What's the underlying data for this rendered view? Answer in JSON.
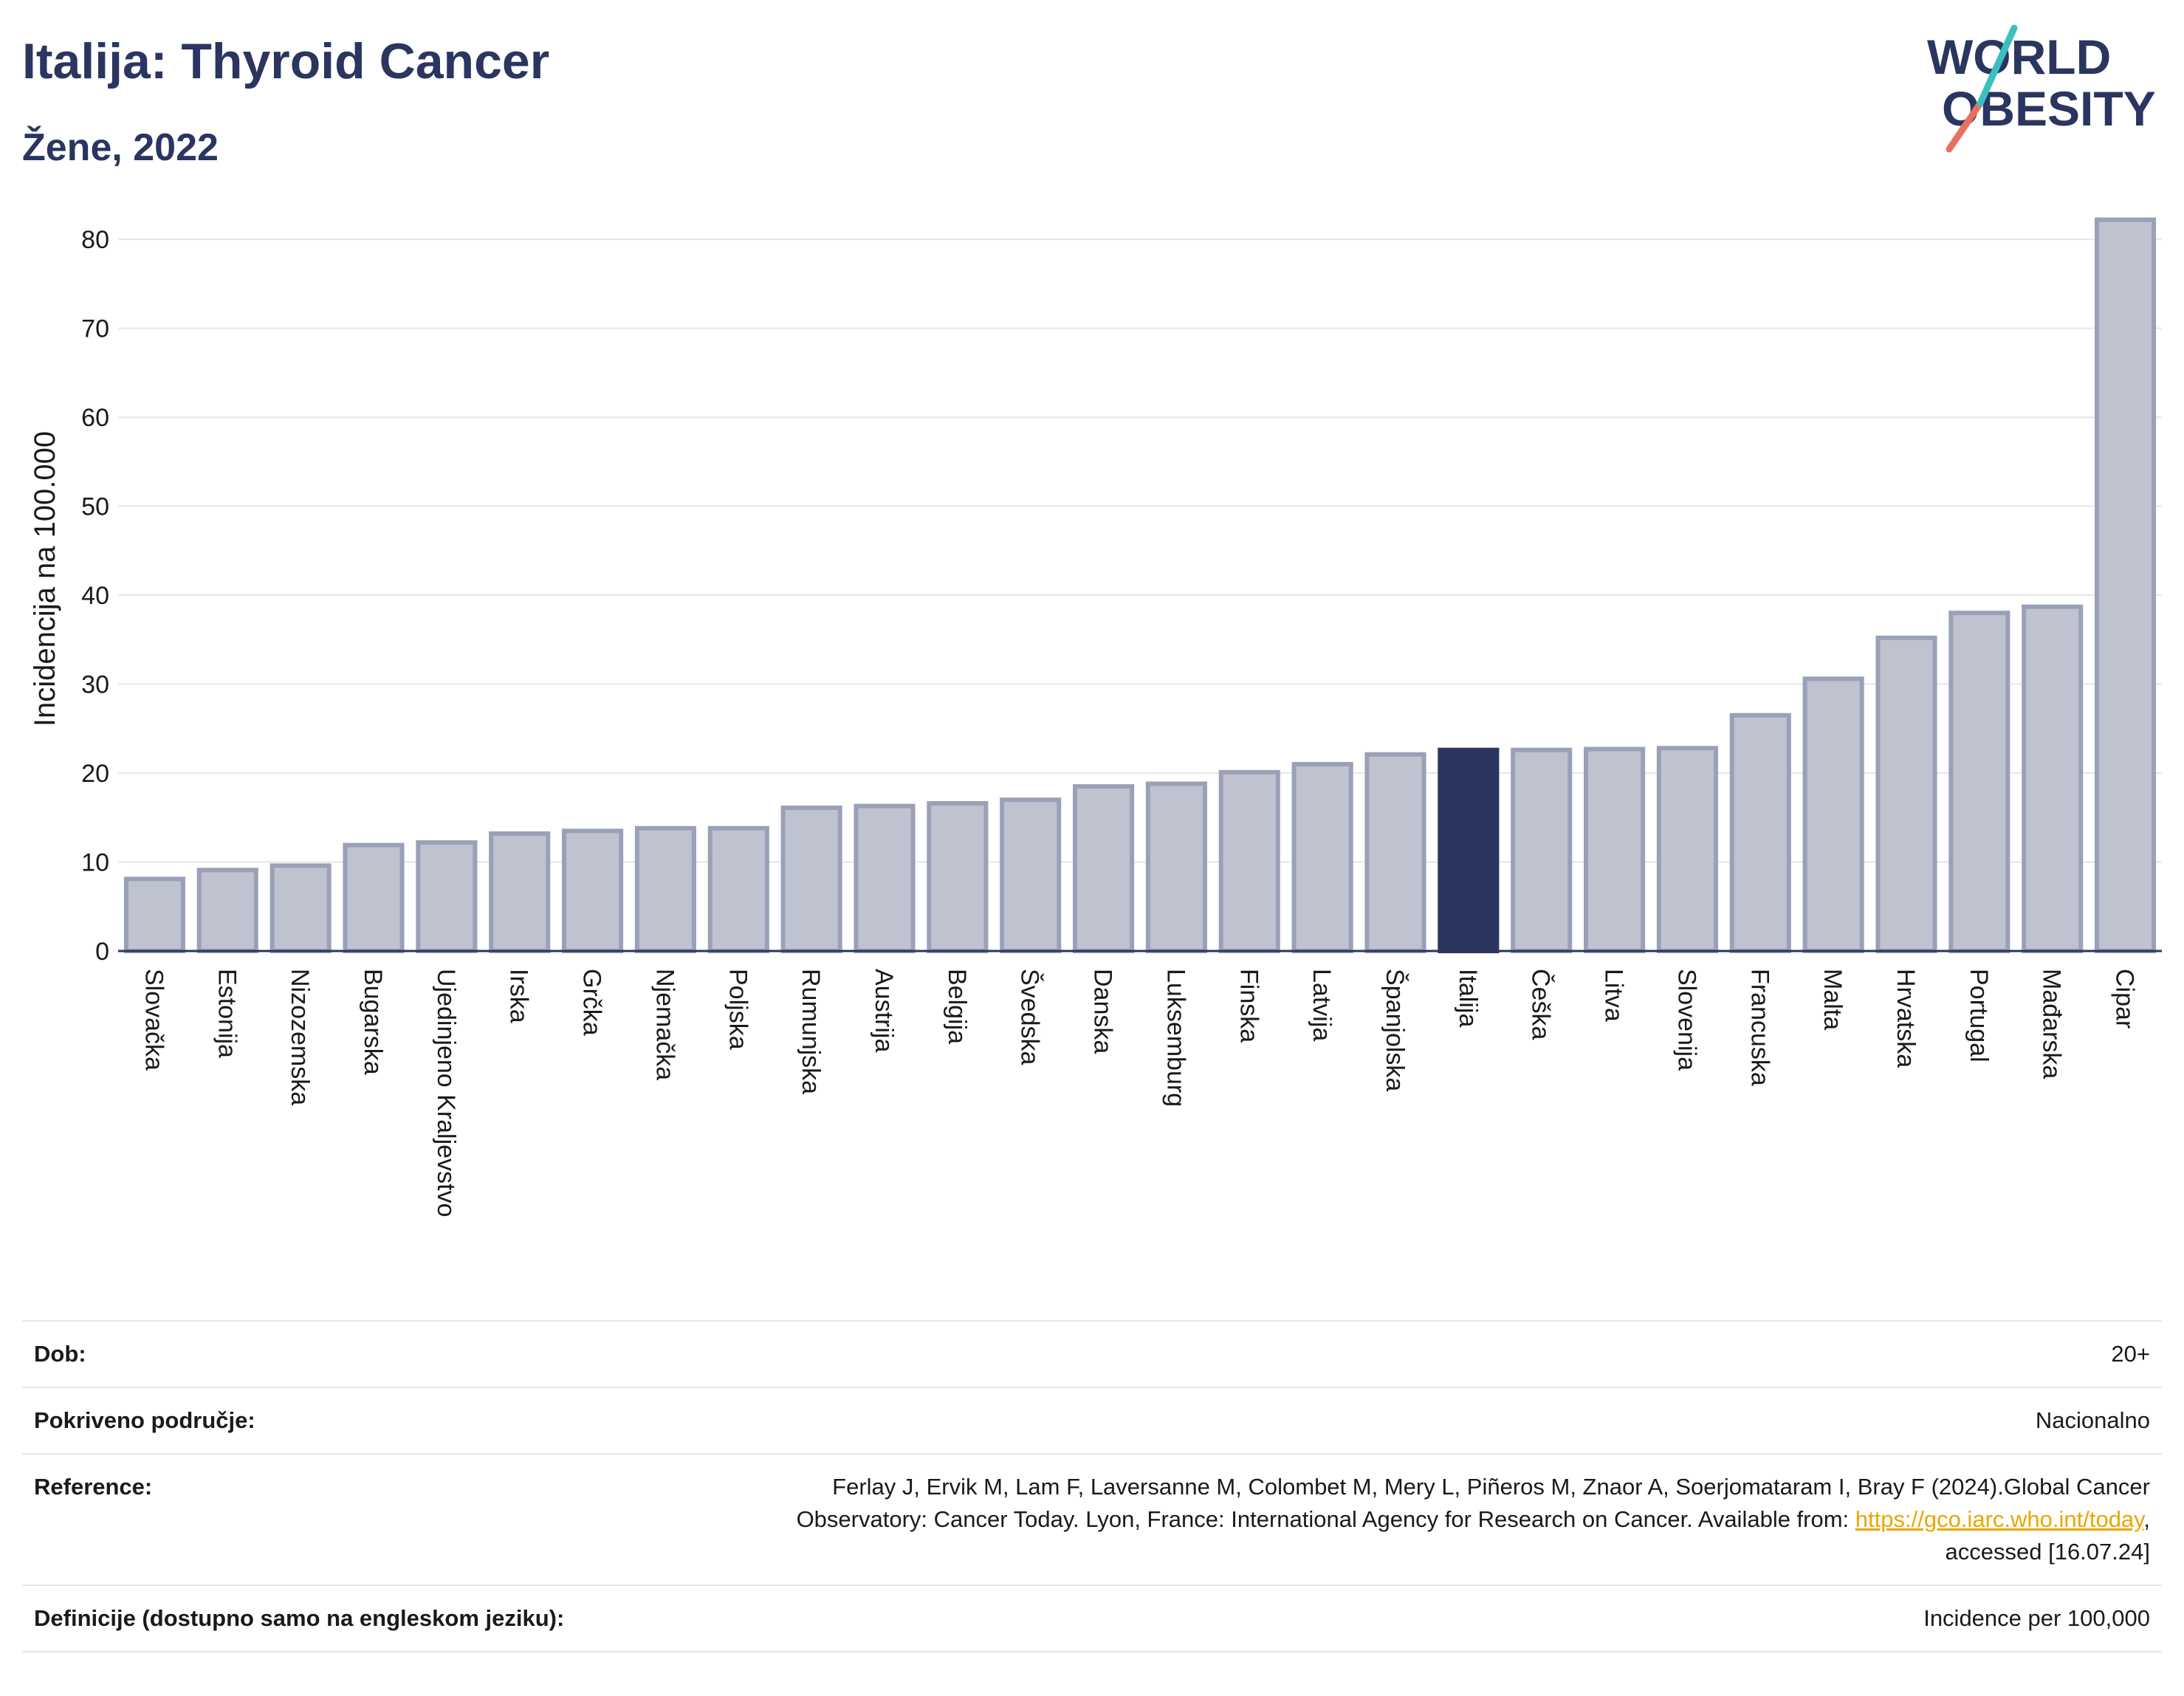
{
  "header": {
    "title": "Italija: Thyroid Cancer",
    "subtitle": "Žene, 2022"
  },
  "logo": {
    "line1": "WORLD",
    "line2": "OBESITY"
  },
  "chart_data": {
    "type": "bar",
    "ylabel": "Incidencija na 100.000",
    "ylim": [
      0,
      82
    ],
    "yticks": [
      0,
      10,
      20,
      30,
      40,
      50,
      60,
      70,
      80
    ],
    "grid": true,
    "highlight": "Italija",
    "colors": {
      "bar": "#bfc3cf",
      "bar_edge": "#9aa0b8",
      "highlight": "#2a3560"
    },
    "categories": [
      "Slovačka",
      "Estonija",
      "Nizozemska",
      "Bugarska",
      "Ujedinjeno Kraljevstvo",
      "Irska",
      "Grčka",
      "Njemačka",
      "Poljska",
      "Rumunjska",
      "Austrija",
      "Belgija",
      "Švedska",
      "Danska",
      "Luksemburg",
      "Finska",
      "Latvija",
      "Španjolska",
      "Italija",
      "Češka",
      "Litva",
      "Slovenija",
      "Francuska",
      "Malta",
      "Hrvatska",
      "Portugal",
      "Mađarska",
      "Cipar"
    ],
    "values": [
      8.1,
      9.1,
      9.6,
      11.9,
      12.2,
      13.2,
      13.5,
      13.8,
      13.8,
      16.1,
      16.3,
      16.6,
      17.0,
      18.5,
      18.8,
      20.1,
      21.0,
      22.1,
      22.6,
      22.6,
      22.7,
      22.8,
      26.5,
      30.6,
      35.2,
      38.0,
      38.7,
      82.2
    ]
  },
  "meta": {
    "age_label": "Dob:",
    "age_value": "20+",
    "coverage_label": "Pokriveno područje:",
    "coverage_value": "Nacionalno",
    "reference_label": "Reference:",
    "reference_text_1": "Ferlay J, Ervik M, Lam F, Laversanne M, Colombet M, Mery L, Piñeros M, Znaor A, Soerjomataram I, Bray F (2024).Global Cancer",
    "reference_text_2": "Observatory: Cancer Today. Lyon, France: International Agency for Research on Cancer. Available from: ",
    "reference_link": "https://gco.iarc.who.int/today",
    "reference_text_3": ",",
    "reference_text_4": "accessed [16.07.24]",
    "definitions_label": "Definicije (dostupno samo na engleskom jeziku):",
    "definitions_value": "Incidence per 100,000"
  }
}
